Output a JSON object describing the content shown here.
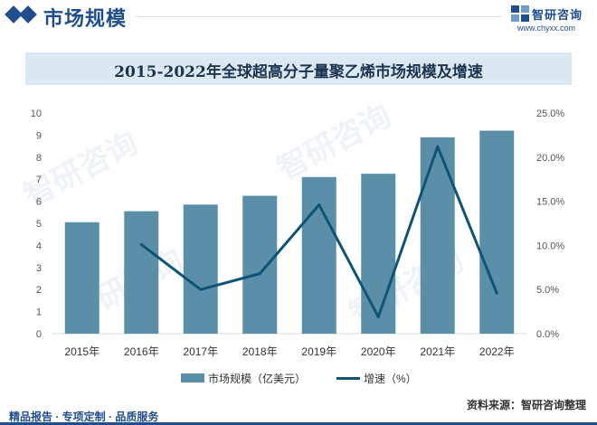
{
  "header": {
    "section_title": "市场规模",
    "brand_name": "智研咨询",
    "brand_url": "www.chyxx.com"
  },
  "watermark_text": "智研咨询",
  "chart_data": {
    "type": "bar",
    "title": "2015-2022年全球超高分子量聚乙烯市场规模及增速",
    "categories": [
      "2015年",
      "2016年",
      "2017年",
      "2018年",
      "2019年",
      "2020年",
      "2021年",
      "2022年"
    ],
    "series": [
      {
        "name": "市场规模（亿美元）",
        "type": "bar",
        "axis": "left",
        "color": "#5b8fa8",
        "values": [
          5.05,
          5.55,
          5.85,
          6.25,
          7.1,
          7.25,
          8.9,
          9.2
        ]
      },
      {
        "name": "增速（%）",
        "type": "line",
        "axis": "right",
        "color": "#0e5476",
        "values": [
          null,
          10.1,
          5.0,
          6.8,
          14.6,
          1.9,
          21.2,
          4.6
        ]
      }
    ],
    "y_left": {
      "min": 0,
      "max": 10,
      "step": 1,
      "ticks": [
        "0",
        "1",
        "2",
        "3",
        "4",
        "5",
        "6",
        "7",
        "8",
        "9",
        "10"
      ]
    },
    "y_right": {
      "min": 0,
      "max": 25,
      "step": 5,
      "ticks": [
        "0.0%",
        "5.0%",
        "10.0%",
        "15.0%",
        "20.0%",
        "25.0%"
      ]
    },
    "grid": false,
    "legend_position": "bottom"
  },
  "footer": {
    "left": "精品报告 · 专项定制 · 品质服务",
    "source": "资料来源：智研咨询整理"
  }
}
